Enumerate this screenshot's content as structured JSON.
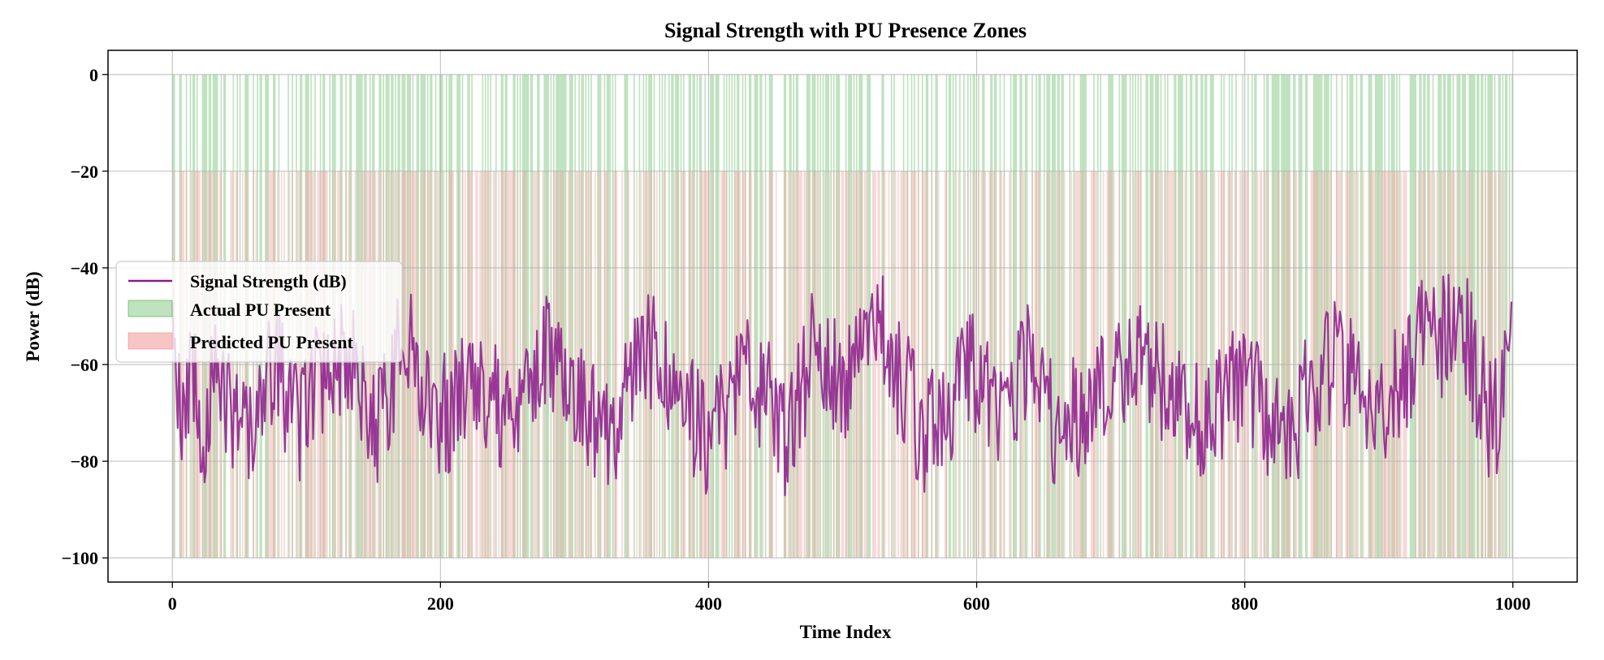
{
  "chart_data": {
    "type": "line",
    "title": "Signal Strength with PU Presence Zones",
    "xlabel": "Time Index",
    "ylabel": "Power (dB)",
    "xlim": [
      -48,
      1048
    ],
    "ylim": [
      -105,
      5
    ],
    "xticks": [
      0,
      200,
      400,
      600,
      800,
      1000
    ],
    "yticks": [
      0,
      -20,
      -40,
      -60,
      -80,
      -100
    ],
    "xtick_labels": [
      "0",
      "200",
      "400",
      "600",
      "800",
      "1000"
    ],
    "ytick_labels": [
      "0",
      "−20",
      "−40",
      "−60",
      "−80",
      "−100"
    ],
    "grid": true,
    "legend_position": "center-left",
    "series": [
      {
        "name": "Signal Strength (dB)",
        "kind": "line",
        "color": "#8b1a8b",
        "x_start": 0,
        "x_end": 999,
        "n_points": 1000,
        "y_range": [
          -90,
          -40
        ],
        "y_mean": -65,
        "keypoints": [
          [
            0,
            -47
          ],
          [
            4,
            -75
          ],
          [
            8,
            -82
          ],
          [
            15,
            -55
          ],
          [
            22,
            -89
          ],
          [
            30,
            -61
          ],
          [
            45,
            -74
          ],
          [
            60,
            -86
          ],
          [
            75,
            -52
          ],
          [
            95,
            -83
          ],
          [
            110,
            -60
          ],
          [
            130,
            -48
          ],
          [
            150,
            -86
          ],
          [
            175,
            -40
          ],
          [
            180,
            -50
          ],
          [
            200,
            -81
          ],
          [
            225,
            -55
          ],
          [
            250,
            -85
          ],
          [
            280,
            -44
          ],
          [
            300,
            -65
          ],
          [
            330,
            -89
          ],
          [
            350,
            -40
          ],
          [
            380,
            -72
          ],
          [
            400,
            -86
          ],
          [
            430,
            -55
          ],
          [
            460,
            -88
          ],
          [
            480,
            -42
          ],
          [
            500,
            -70
          ],
          [
            530,
            -40
          ],
          [
            560,
            -86
          ],
          [
            600,
            -55
          ],
          [
            620,
            -80
          ],
          [
            640,
            -44
          ],
          [
            660,
            -88
          ],
          [
            700,
            -58
          ],
          [
            720,
            -45
          ],
          [
            760,
            -84
          ],
          [
            800,
            -62
          ],
          [
            830,
            -88
          ],
          [
            865,
            -50
          ],
          [
            900,
            -75
          ],
          [
            935,
            -40
          ],
          [
            965,
            -40
          ],
          [
            985,
            -86
          ],
          [
            999,
            -47
          ]
        ]
      },
      {
        "name": "Actual PU Present",
        "kind": "shaded-spans",
        "color": "#2ca02c",
        "opacity": 0.3,
        "y_range": [
          -100,
          0
        ],
        "density": 0.5
      },
      {
        "name": "Predicted PU Present",
        "kind": "shaded-spans",
        "color": "#f4a6a6",
        "opacity": 0.45,
        "y_range": [
          -100,
          -20
        ],
        "density": 0.5
      }
    ]
  }
}
